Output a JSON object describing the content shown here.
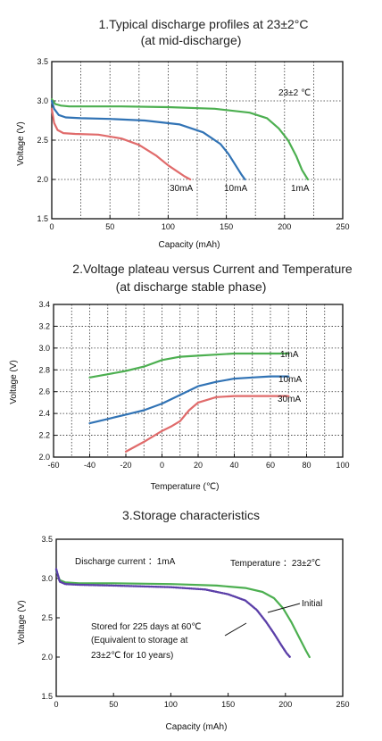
{
  "chart_data": [
    {
      "type": "line",
      "title": "1.Typical discharge profiles at 23±2°C",
      "subtitle": "(at mid-discharge)",
      "xlabel": "Capacity (mAh)",
      "ylabel": "Voltage (V)",
      "xlim": [
        0,
        250
      ],
      "ylim": [
        1.5,
        3.5
      ],
      "xticks": [
        "0",
        "50",
        "100",
        "150",
        "200",
        "250"
      ],
      "yticks": [
        "1.5",
        "2.0",
        "2.5",
        "3.0",
        "3.5"
      ],
      "grid": true,
      "annotation": "23±2 ℃",
      "series": [
        {
          "name": "1mA",
          "color": "#4caf50",
          "x": [
            0,
            3,
            8,
            15,
            30,
            60,
            100,
            140,
            170,
            185,
            195,
            203,
            210,
            215,
            220
          ],
          "y": [
            3.02,
            2.96,
            2.94,
            2.93,
            2.93,
            2.93,
            2.92,
            2.9,
            2.85,
            2.78,
            2.65,
            2.5,
            2.3,
            2.12,
            2.0
          ]
        },
        {
          "name": "10mA",
          "color": "#3173b5",
          "x": [
            0,
            2,
            6,
            12,
            25,
            50,
            80,
            110,
            130,
            145,
            152,
            158,
            163,
            166
          ],
          "y": [
            3.0,
            2.9,
            2.82,
            2.79,
            2.78,
            2.77,
            2.75,
            2.7,
            2.6,
            2.45,
            2.32,
            2.18,
            2.06,
            2.0
          ]
        },
        {
          "name": "30mA",
          "color": "#e06b6b",
          "x": [
            0,
            2,
            5,
            10,
            20,
            40,
            60,
            75,
            90,
            100,
            108,
            114,
            119
          ],
          "y": [
            2.9,
            2.72,
            2.63,
            2.59,
            2.58,
            2.57,
            2.52,
            2.44,
            2.3,
            2.18,
            2.1,
            2.04,
            2.0
          ]
        }
      ]
    },
    {
      "type": "line",
      "title": "2.Voltage plateau versus Current and Temperature",
      "subtitle": "(at discharge stable phase)",
      "xlabel": "Temperature (℃)",
      "ylabel": "Voltage (V)",
      "xlim": [
        -60,
        100
      ],
      "ylim": [
        2.0,
        3.4
      ],
      "xticks": [
        "-60",
        "-40",
        "-20",
        "0",
        "20",
        "40",
        "60",
        "80",
        "100"
      ],
      "yticks": [
        "2.0",
        "2.2",
        "2.4",
        "2.6",
        "2.8",
        "3.0",
        "3.2",
        "3.4"
      ],
      "grid": true,
      "series": [
        {
          "name": "1mA",
          "color": "#4caf50",
          "x": [
            -40,
            -30,
            -20,
            -10,
            0,
            10,
            20,
            30,
            40,
            50,
            60,
            70
          ],
          "y": [
            2.73,
            2.76,
            2.79,
            2.83,
            2.89,
            2.92,
            2.93,
            2.94,
            2.95,
            2.95,
            2.95,
            2.95
          ]
        },
        {
          "name": "10mA",
          "color": "#3173b5",
          "x": [
            -40,
            -30,
            -20,
            -10,
            0,
            10,
            20,
            30,
            40,
            50,
            60,
            70
          ],
          "y": [
            2.31,
            2.35,
            2.39,
            2.43,
            2.49,
            2.57,
            2.65,
            2.69,
            2.72,
            2.73,
            2.74,
            2.74
          ]
        },
        {
          "name": "30mA",
          "color": "#e06b6b",
          "x": [
            -20,
            -10,
            0,
            5,
            10,
            15,
            20,
            30,
            40,
            50,
            60,
            70
          ],
          "y": [
            2.05,
            2.14,
            2.24,
            2.28,
            2.33,
            2.43,
            2.5,
            2.55,
            2.56,
            2.56,
            2.56,
            2.56
          ]
        }
      ]
    },
    {
      "type": "line",
      "title": "3.Storage characteristics",
      "xlabel": "Capacity (mAh)",
      "ylabel": "Voltage (V)",
      "xlim": [
        0,
        250
      ],
      "ylim": [
        1.5,
        3.5
      ],
      "xticks": [
        "0",
        "50",
        "100",
        "150",
        "200",
        "250"
      ],
      "yticks": [
        "1.5",
        "2.0",
        "2.5",
        "3.0",
        "3.5"
      ],
      "grid": false,
      "annotations": {
        "discharge_current": "Discharge current ：1mA",
        "temperature": "Temperature ：23±2℃",
        "stored_line1": "Stored for 225 days at 60℃",
        "stored_line2": "(Equivalent to storage at",
        "stored_line3": "23±2℃ for 10 years)"
      },
      "series": [
        {
          "name": "Initial",
          "color": "#4caf50",
          "x": [
            0,
            3,
            8,
            20,
            50,
            100,
            140,
            165,
            180,
            190,
            198,
            205,
            212,
            218,
            221
          ],
          "y": [
            3.1,
            2.98,
            2.95,
            2.94,
            2.94,
            2.93,
            2.91,
            2.88,
            2.83,
            2.75,
            2.62,
            2.45,
            2.25,
            2.08,
            2.0
          ]
        },
        {
          "name": "",
          "color": "#5b3fa8",
          "dotted": true,
          "x": [
            0,
            3,
            8,
            20,
            50,
            100,
            130,
            150,
            165,
            175,
            183,
            190,
            196,
            201,
            204
          ],
          "y": [
            3.12,
            2.96,
            2.93,
            2.92,
            2.91,
            2.89,
            2.86,
            2.8,
            2.72,
            2.6,
            2.45,
            2.3,
            2.16,
            2.05,
            2.0
          ]
        }
      ]
    }
  ]
}
